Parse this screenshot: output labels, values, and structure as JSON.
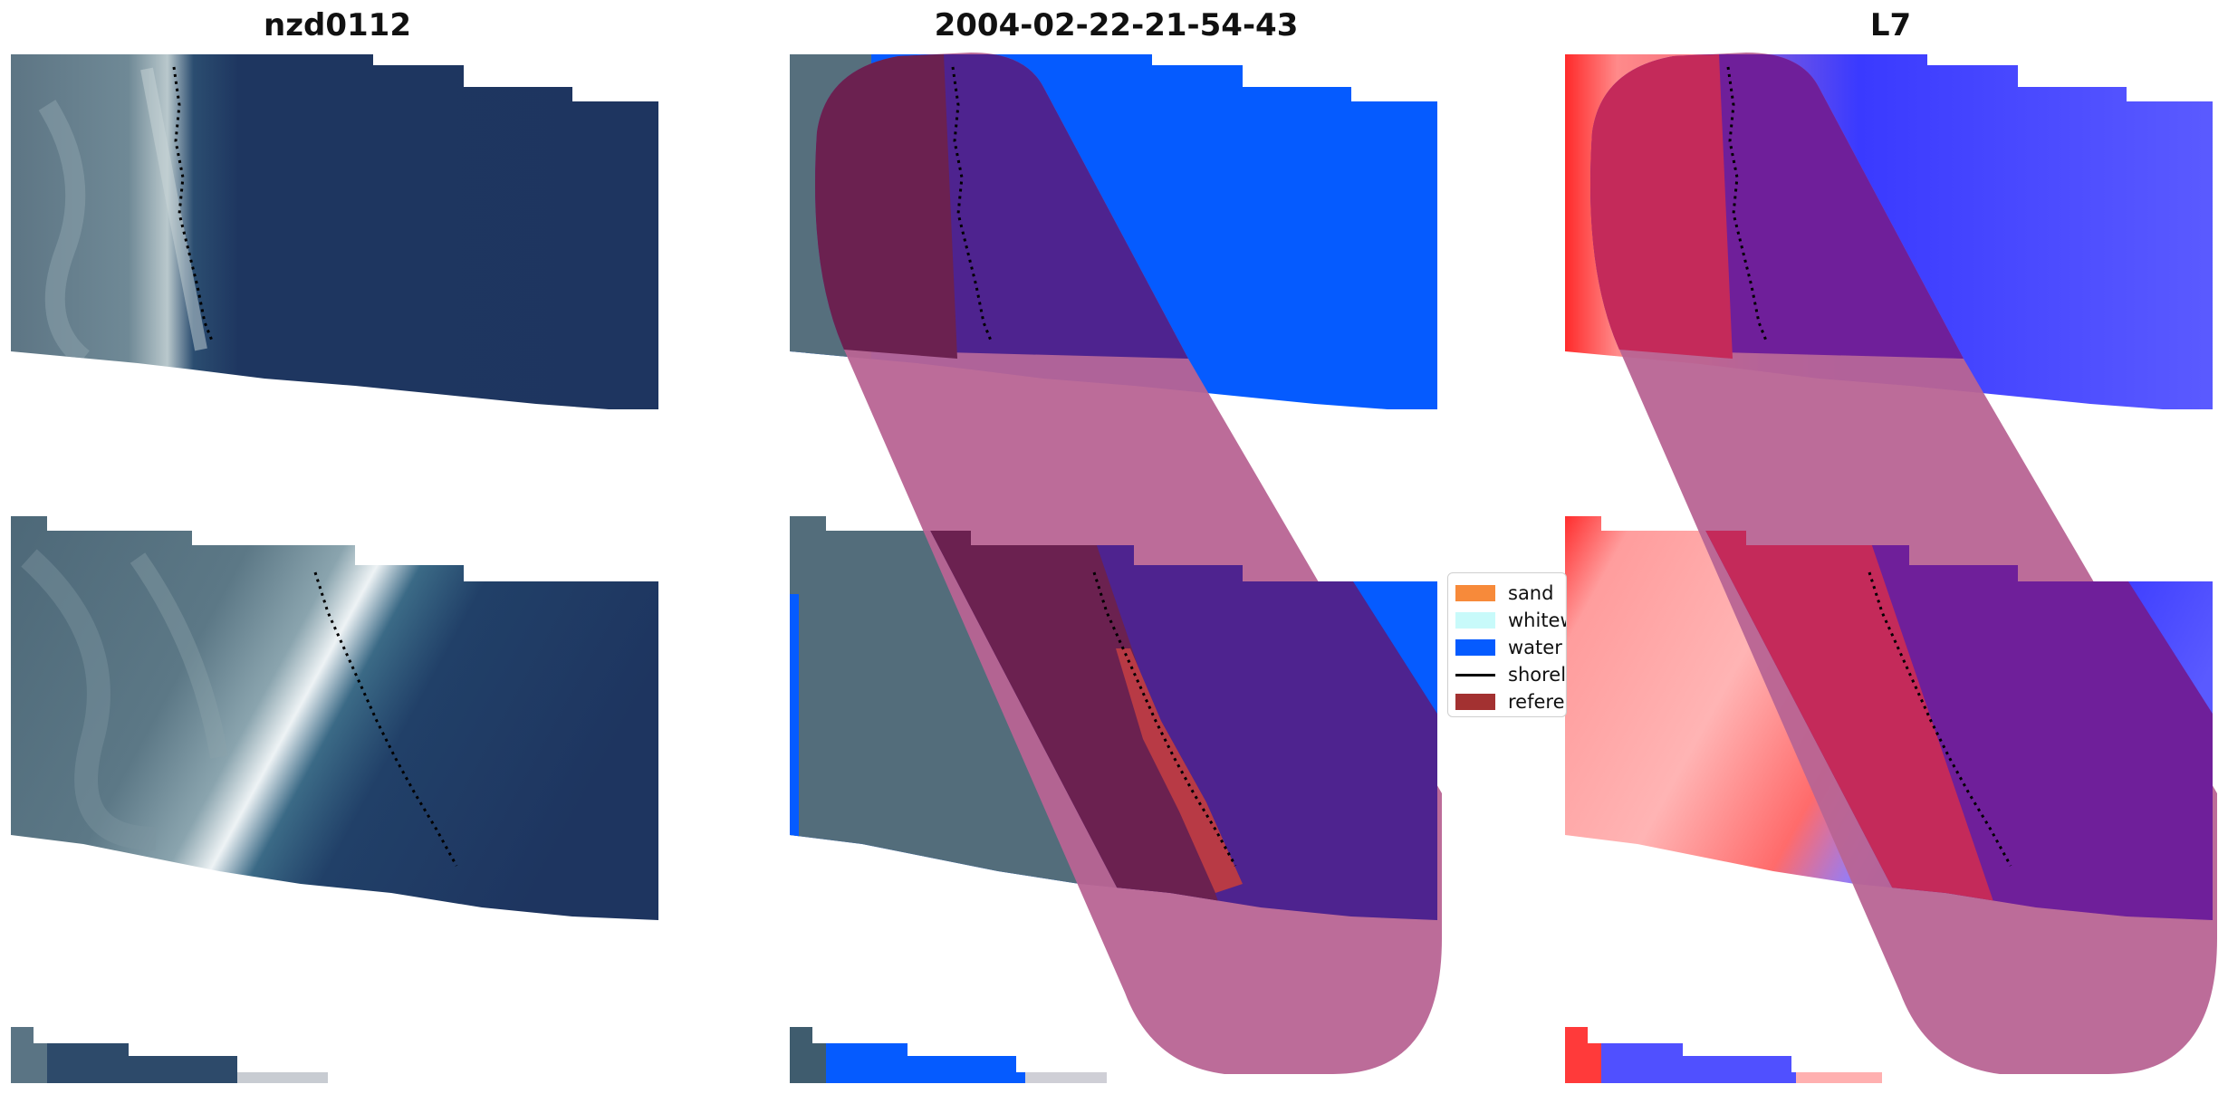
{
  "panels": [
    {
      "title": "nzd0112"
    },
    {
      "title": "2004-02-22-21-54-43"
    },
    {
      "title": "L7"
    }
  ],
  "legend": {
    "items": [
      {
        "label": "sand",
        "color": "#f78a3a"
      },
      {
        "label": "whitewater",
        "color": "#c8fafa"
      },
      {
        "label": "water",
        "color": "#055bff"
      },
      {
        "label": "shoreline",
        "color": "#000000"
      },
      {
        "label": "reference",
        "color": "#a33131"
      }
    ]
  },
  "colors": {
    "ocean_dark": "#1e3660",
    "land_gray": "#4f6a78",
    "surf_white": "#dde6ea",
    "buffer_pink": "#b86494",
    "overlay_purple": "#4e238f",
    "overlay_maroon": "#6b2150",
    "water_blue": "#055bff",
    "index_red": "#ff2a2a",
    "index_blue": "#3a3aff",
    "index_purple": "#6f1f9a",
    "index_crimson": "#c42a5a"
  }
}
